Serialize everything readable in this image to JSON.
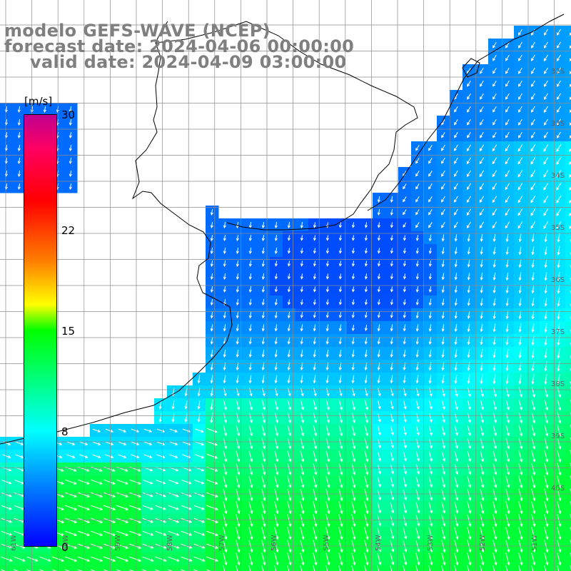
{
  "title": {
    "line1": "modelo GEFS-WAVE (NCEP)",
    "line2": "forecast date: 2024-04-06 00:00:00",
    "line3": "valid date: 2024-04-09 03:00:00"
  },
  "colorbar": {
    "unit": "[m/s]",
    "min": 0,
    "max": 30,
    "ticks": [
      "30",
      "22",
      "15",
      "8",
      "0"
    ],
    "tick_values": [
      30,
      22,
      15,
      8,
      0
    ],
    "colors": [
      "#0000ff",
      "#0078ff",
      "#00ffff",
      "#00ff00",
      "#ffff00",
      "#ff8000",
      "#ff0000",
      "#ff0060",
      "#c00090"
    ]
  },
  "lat_labels": [
    "32S",
    "33S",
    "34S",
    "35S",
    "36S",
    "37S",
    "38S",
    "39S",
    "40S"
  ],
  "lon_labels": [
    "61W",
    "60W",
    "59W",
    "58W",
    "57W",
    "56W",
    "55W",
    "54W",
    "53W",
    "52W",
    "51W"
  ],
  "colors": {
    "land": "#ffffff",
    "grid": "#8c8c8c",
    "coast": "#000000",
    "arrow": "#ffffff",
    "title": "#7f7f7f"
  }
}
